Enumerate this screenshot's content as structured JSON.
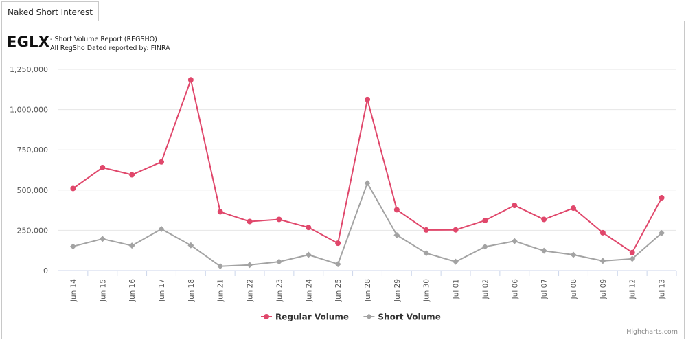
{
  "tab": {
    "label": "Naked Short Interest"
  },
  "header": {
    "ticker": "EGLX",
    "subtitle_line1": "- Short Volume Report (REGSHO)",
    "subtitle_line2": "All RegSho Dated reported by: FINRA"
  },
  "credits": "Highcharts.com",
  "chart_data": {
    "type": "line",
    "categories": [
      "Jun 14",
      "Jun 15",
      "Jun 16",
      "Jun 17",
      "Jun 18",
      "Jun 21",
      "Jun 22",
      "Jun 23",
      "Jun 24",
      "Jun 25",
      "Jun 28",
      "Jun 29",
      "Jun 30",
      "Jul 01",
      "Jul 02",
      "Jul 06",
      "Jul 07",
      "Jul 08",
      "Jul 09",
      "Jul 12",
      "Jul 13"
    ],
    "series": [
      {
        "name": "Regular Volume",
        "color": "#e0476b",
        "marker": "circle",
        "values": [
          510000,
          640000,
          595000,
          675000,
          1185000,
          365000,
          305000,
          318000,
          268000,
          170000,
          1063000,
          378000,
          252000,
          253000,
          312000,
          405000,
          318000,
          388000,
          235000,
          112000,
          452000
        ]
      },
      {
        "name": "Short Volume",
        "color": "#a3a3a3",
        "marker": "diamond",
        "values": [
          150000,
          197000,
          155000,
          258000,
          157000,
          27000,
          35000,
          55000,
          98000,
          40000,
          543000,
          220000,
          108000,
          55000,
          148000,
          183000,
          123000,
          98000,
          60000,
          73000,
          233000
        ]
      }
    ],
    "ylim": [
      0,
      1250000
    ],
    "yticks": [
      0,
      250000,
      500000,
      750000,
      1000000,
      1250000
    ],
    "ytick_labels": [
      "0",
      "250,000",
      "500,000",
      "750,000",
      "1,000,000",
      "1,250,000"
    ],
    "legend": "bottom-center",
    "grid": true
  }
}
